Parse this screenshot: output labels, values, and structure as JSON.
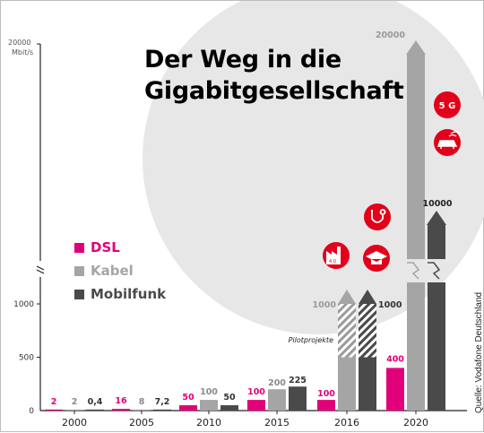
{
  "title": {
    "line1": "Der Weg in die",
    "line2": "Gigabitgesellschaft"
  },
  "source": "Quelle: Vodafone Deutschland",
  "colors": {
    "dsl": "#e2007a",
    "kabel": "#a5a5a5",
    "mobilfunk": "#4a4a4a",
    "red": "#e2001a",
    "bg_circle": "#e7e7e7"
  },
  "icons": [
    "5g-label",
    "car-icon",
    "stethoscope-icon",
    "factory-icon",
    "graduation-cap-icon"
  ],
  "badges": {
    "five_g": "5 G",
    "industry": "4.0"
  },
  "annotation_pilot": "Pilotprojekte",
  "chart_data": {
    "type": "bar",
    "title": "Der Weg in die Gigabitgesellschaft",
    "y_unit": "Mbit/s",
    "y_axis": {
      "lower_ticks": [
        "500",
        "1000"
      ],
      "upper_tick": "20000",
      "lower_range": [
        0,
        1000
      ],
      "break": true,
      "zero_label": "0"
    },
    "categories": [
      "2000",
      "2005",
      "2010",
      "2015",
      "2016",
      "2020"
    ],
    "series": [
      {
        "name": "DSL",
        "values": [
          2,
          16,
          50,
          100,
          100,
          400
        ],
        "labels": [
          "2",
          "16",
          "50",
          "100",
          "100",
          "400"
        ]
      },
      {
        "name": "Kabel",
        "values": [
          2,
          8,
          100,
          200,
          1000,
          20000
        ],
        "labels": [
          "2",
          "8",
          "100",
          "200",
          "1000",
          "20000"
        ]
      },
      {
        "name": "Mobilfunk",
        "values": [
          0.4,
          7.2,
          50,
          225,
          1000,
          10000
        ],
        "labels": [
          "0,4",
          "7,2",
          "50",
          "225",
          "1000",
          "10000"
        ]
      }
    ],
    "pilot_projects": {
      "category": "2016",
      "series": [
        "Kabel",
        "Mobilfunk"
      ],
      "from": 500,
      "to": 1000
    },
    "legend_position": "left"
  }
}
